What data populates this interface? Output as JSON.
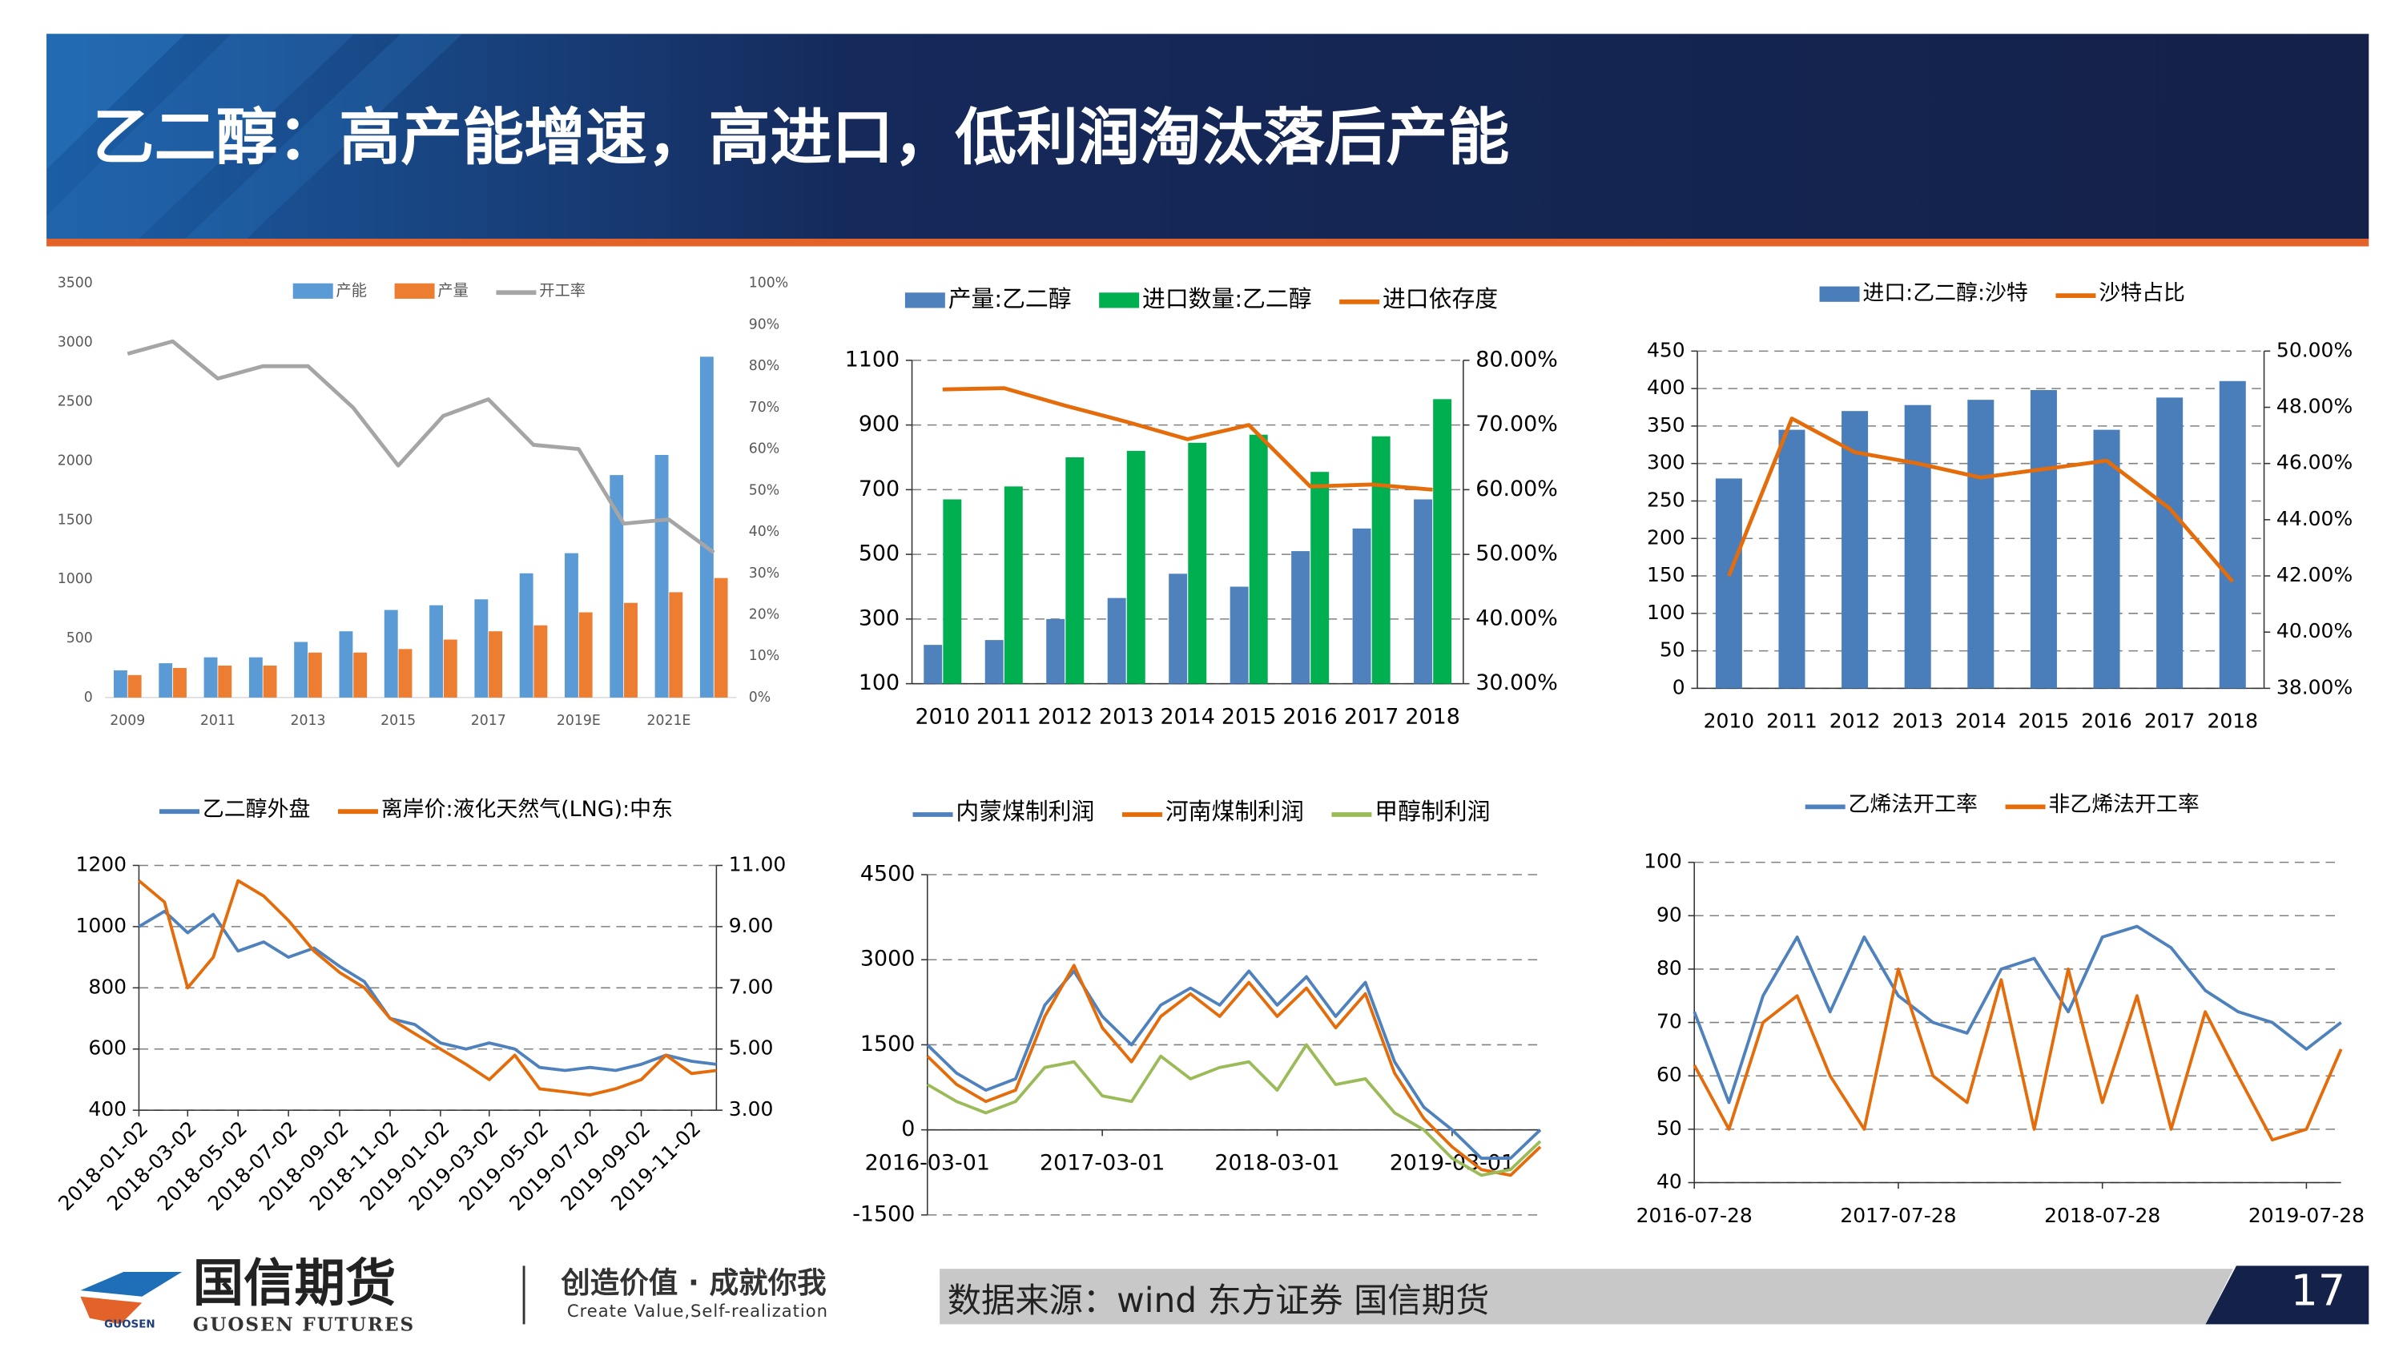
{
  "header": {
    "title": "乙二醇：高产能增速，高进口，低利润淘汰落后产能"
  },
  "chart_data": [
    {
      "type": "bar",
      "grid": false,
      "categories": [
        "2009",
        null,
        "2011",
        null,
        "2013",
        null,
        "2015",
        null,
        "2017",
        null,
        "2019E",
        null,
        "2021E",
        null
      ],
      "ylim": [
        0,
        3500
      ],
      "yticks": [
        0,
        500,
        1000,
        1500,
        2000,
        2500,
        3000,
        3500
      ],
      "y2lim": [
        0,
        100
      ],
      "y2ticks": [
        {
          "value": 0,
          "label": "0%"
        },
        {
          "value": 10,
          "label": "10%"
        },
        {
          "value": 20,
          "label": "20%"
        },
        {
          "value": 30,
          "label": "30%"
        },
        {
          "value": 40,
          "label": "40%"
        },
        {
          "value": 50,
          "label": "50%"
        },
        {
          "value": 60,
          "label": "60%"
        },
        {
          "value": 70,
          "label": "70%"
        },
        {
          "value": 80,
          "label": "80%"
        },
        {
          "value": 90,
          "label": "90%"
        },
        {
          "value": 100,
          "label": "100%"
        }
      ],
      "series": [
        {
          "name": "产能",
          "color": "#5b9bd5",
          "values": [
            230,
            290,
            340,
            340,
            470,
            560,
            740,
            780,
            830,
            1050,
            1220,
            1880,
            2050,
            2880
          ]
        },
        {
          "name": "产量",
          "color": "#ed7d31",
          "values": [
            190,
            250,
            270,
            270,
            380,
            380,
            410,
            490,
            560,
            610,
            720,
            800,
            890,
            1010
          ]
        },
        {
          "name": "开工率",
          "color": "#a5a5a5",
          "type": "line",
          "axis": "y2",
          "values": [
            83,
            86,
            77,
            80,
            80,
            70,
            56,
            68,
            72,
            61,
            60,
            42,
            43,
            35
          ]
        }
      ]
    },
    {
      "type": "bar",
      "grid": true,
      "categories": [
        "2010",
        "2011",
        "2012",
        "2013",
        "2014",
        "2015",
        "2016",
        "2017",
        "2018"
      ],
      "ylim": [
        100,
        1100
      ],
      "yticks": [
        100,
        300,
        500,
        700,
        900,
        1100
      ],
      "y2lim": [
        30,
        80
      ],
      "y2ticks": [
        {
          "value": 30,
          "label": "30.00%"
        },
        {
          "value": 40,
          "label": "40.00%"
        },
        {
          "value": 50,
          "label": "50.00%"
        },
        {
          "value": 60,
          "label": "60.00%"
        },
        {
          "value": 70,
          "label": "70.00%"
        },
        {
          "value": 80,
          "label": "80.00%"
        }
      ],
      "series": [
        {
          "name": "产量:乙二醇",
          "color": "#4f81bd",
          "values": [
            220,
            235,
            300,
            365,
            440,
            400,
            510,
            580,
            670
          ]
        },
        {
          "name": "进口数量:乙二醇",
          "color": "#00b050",
          "values": [
            670,
            710,
            800,
            820,
            845,
            870,
            755,
            865,
            980
          ]
        },
        {
          "name": "进口依存度",
          "color": "#e46c0a",
          "type": "line",
          "axis": "y2",
          "values": [
            75.5,
            75.7,
            73,
            70.5,
            67.8,
            70,
            60.5,
            60.8,
            60
          ]
        }
      ]
    },
    {
      "type": "bar",
      "grid": true,
      "categories": [
        "2010",
        "2011",
        "2012",
        "2013",
        "2014",
        "2015",
        "2016",
        "2017",
        "2018"
      ],
      "ylim": [
        0,
        450
      ],
      "yticks": [
        0,
        50,
        100,
        150,
        200,
        250,
        300,
        350,
        400,
        450
      ],
      "y2lim": [
        38,
        50
      ],
      "y2ticks": [
        {
          "value": 38,
          "label": "38.00%"
        },
        {
          "value": 40,
          "label": "40.00%"
        },
        {
          "value": 42,
          "label": "42.00%"
        },
        {
          "value": 44,
          "label": "44.00%"
        },
        {
          "value": 46,
          "label": "46.00%"
        },
        {
          "value": 48,
          "label": "48.00%"
        },
        {
          "value": 50,
          "label": "50.00%"
        }
      ],
      "series": [
        {
          "name": "进口:乙二醇:沙特",
          "color": "#4a7ebb",
          "values": [
            280,
            345,
            370,
            378,
            385,
            398,
            345,
            388,
            410
          ]
        },
        {
          "name": "沙特占比",
          "color": "#e46c0a",
          "type": "line",
          "axis": "y2",
          "values": [
            42,
            47.6,
            46.4,
            46,
            45.5,
            45.8,
            46.1,
            44.4,
            41.8
          ]
        }
      ]
    },
    {
      "type": "line",
      "grid": true,
      "x": [
        "2018-01-02",
        "2018-02-02",
        "2018-03-02",
        "2018-04-02",
        "2018-05-02",
        "2018-06-02",
        "2018-07-02",
        "2018-08-02",
        "2018-09-02",
        "2018-10-02",
        "2018-11-02",
        "2018-12-02",
        "2019-01-02",
        "2019-02-02",
        "2019-03-02",
        "2019-04-02",
        "2019-05-02",
        "2019-06-02",
        "2019-07-02",
        "2019-08-02",
        "2019-09-02",
        "2019-10-02",
        "2019-11-02",
        "2019-12-02"
      ],
      "xticks": [
        "2018-01-02",
        "2018-03-02",
        "2018-05-02",
        "2018-07-02",
        "2018-09-02",
        "2018-11-02",
        "2019-01-02",
        "2019-03-02",
        "2019-05-02",
        "2019-07-02",
        "2019-09-02",
        "2019-11-02"
      ],
      "ylim": [
        400,
        1200
      ],
      "yticks": [
        400,
        600,
        800,
        1000,
        1200
      ],
      "y2lim": [
        3,
        11
      ],
      "y2ticks": [
        {
          "value": 3,
          "label": "3.00"
        },
        {
          "value": 5,
          "label": "5.00"
        },
        {
          "value": 7,
          "label": "7.00"
        },
        {
          "value": 9,
          "label": "9.00"
        },
        {
          "value": 11,
          "label": "11.00"
        }
      ],
      "series": [
        {
          "name": "乙二醇外盘",
          "color": "#4f81bd",
          "values": [
            1000,
            1050,
            980,
            1040,
            920,
            950,
            900,
            930,
            870,
            820,
            700,
            680,
            620,
            600,
            620,
            600,
            540,
            530,
            540,
            530,
            550,
            580,
            560,
            550
          ]
        },
        {
          "name": "离岸价:液化天然气(LNG):中东",
          "color": "#e46c0a",
          "axis": "y2",
          "values": [
            10.5,
            9.8,
            7,
            8,
            10.5,
            10,
            9.2,
            8.2,
            7.5,
            7,
            6,
            5.5,
            5,
            4.5,
            4,
            4.8,
            3.7,
            3.6,
            3.5,
            3.7,
            4,
            4.8,
            4.2,
            4.3
          ]
        }
      ]
    },
    {
      "type": "line",
      "grid": true,
      "x": [
        "2016-03-01",
        "2016-05-01",
        "2016-07-01",
        "2016-09-01",
        "2016-11-01",
        "2017-01-01",
        "2017-03-01",
        "2017-05-01",
        "2017-07-01",
        "2017-09-01",
        "2017-11-01",
        "2018-01-01",
        "2018-03-01",
        "2018-05-01",
        "2018-07-01",
        "2018-09-01",
        "2018-11-01",
        "2019-01-01",
        "2019-03-01",
        "2019-05-01",
        "2019-07-01",
        "2019-09-01"
      ],
      "xticks": [
        "2016-03-01",
        "2017-03-01",
        "2018-03-01",
        "2019-03-01"
      ],
      "ylim": [
        -1500,
        4500
      ],
      "yticks": [
        -1500,
        0,
        1500,
        3000,
        4500
      ],
      "series": [
        {
          "name": "内蒙煤制利润",
          "color": "#4f81bd",
          "values": [
            1500,
            1000,
            700,
            900,
            2200,
            2800,
            2000,
            1500,
            2200,
            2500,
            2200,
            2800,
            2200,
            2700,
            2000,
            2600,
            1200,
            400,
            0,
            -500,
            -500,
            0
          ]
        },
        {
          "name": "河南煤制利润",
          "color": "#e46c0a",
          "values": [
            1300,
            800,
            500,
            700,
            2000,
            2900,
            1800,
            1200,
            2000,
            2400,
            2000,
            2600,
            2000,
            2500,
            1800,
            2400,
            1000,
            200,
            -300,
            -700,
            -800,
            -300
          ]
        },
        {
          "name": "甲醇制利润",
          "color": "#9bbb59",
          "values": [
            800,
            500,
            300,
            500,
            1100,
            1200,
            600,
            500,
            1300,
            900,
            1100,
            1200,
            700,
            1500,
            800,
            900,
            300,
            0,
            -500,
            -800,
            -700,
            -200
          ]
        }
      ]
    },
    {
      "type": "line",
      "grid": true,
      "x": [
        "2016-07-28",
        "2016-09-28",
        "2016-11-28",
        "2017-01-28",
        "2017-03-28",
        "2017-05-28",
        "2017-07-28",
        "2017-09-28",
        "2017-11-28",
        "2018-01-28",
        "2018-03-28",
        "2018-05-28",
        "2018-07-28",
        "2018-09-28",
        "2018-11-28",
        "2019-01-28",
        "2019-03-28",
        "2019-05-28",
        "2019-07-28",
        "2019-09-28"
      ],
      "xticks": [
        "2016-07-28",
        "2017-07-28",
        "2018-07-28",
        "2019-07-28"
      ],
      "ylim": [
        40,
        100
      ],
      "yticks": [
        40,
        50,
        60,
        70,
        80,
        90,
        100
      ],
      "series": [
        {
          "name": "乙烯法开工率",
          "color": "#4f81bd",
          "values": [
            72,
            55,
            75,
            86,
            72,
            86,
            75,
            70,
            68,
            80,
            82,
            72,
            86,
            88,
            84,
            76,
            72,
            70,
            65,
            70
          ]
        },
        {
          "name": "非乙烯法开工率",
          "color": "#e46c0a",
          "values": [
            62,
            50,
            70,
            75,
            60,
            50,
            80,
            60,
            55,
            78,
            50,
            80,
            55,
            75,
            50,
            72,
            60,
            48,
            50,
            65
          ]
        }
      ]
    }
  ],
  "footer": {
    "logo_cn": "国信期货",
    "logo_en": "GUOSEN FUTURES",
    "logo_small": "GUOSEN",
    "slogan_cn": "创造价值 · 成就你我",
    "slogan_en": "Create Value,Self-realization",
    "source": "数据来源：wind  东方证券  国信期货",
    "page": "17"
  }
}
